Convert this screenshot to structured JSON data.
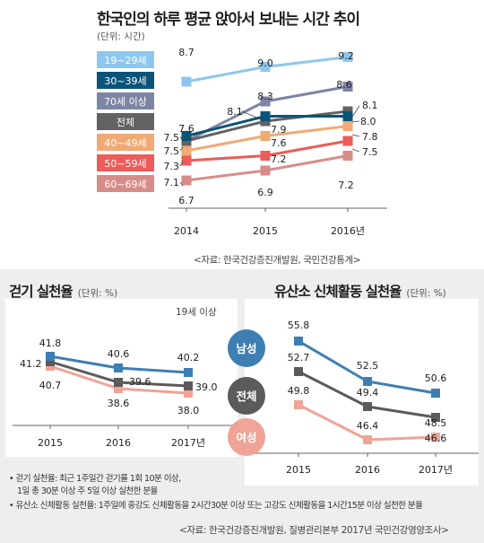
{
  "main": {
    "title": "한국인의 하루 평균 앉아서 보내는 시간 추이",
    "unit": "(단위: 시간)",
    "source": "<자료: 한국건강증진개발원, 국민건강통계>"
  },
  "walk": {
    "title": "걷기 실천율",
    "unit": "(단위: %)",
    "subtitle": "19세 이상"
  },
  "aerobic": {
    "title": "유산소 신체활동 실천율",
    "unit": "(단위: %)"
  },
  "notes": {
    "walk_def_1": "• 걷기 실천율: 최근 1주일간 걷기를 1회 10분 이상,",
    "walk_def_2": "1일 총 30분 이상 주 5일 이상 실천한 분율",
    "aerobic_def": "• 유산소 신체활동 실천율: 1주일에 중강도 신체활동을 2시간30분 이상 또는 고강도 신체활동을 1시간15분 이상 실천한 분율",
    "source": "<자료: 한국건강증진개발원, 질병관리본부 2017년 국민건강영양조사>"
  },
  "chart_data": [
    {
      "type": "line",
      "categories": [
        "2014",
        "2015",
        "2016년"
      ],
      "series": [
        {
          "name": "19~29세",
          "values": [
            8.7,
            9.0,
            9.2
          ],
          "labels": [
            "8.7",
            "9.0",
            "9.2"
          ],
          "color": "#8ec7ee"
        },
        {
          "name": "30~39세",
          "values": [
            7.6,
            8.0,
            8.0
          ],
          "labels": [
            "7.6",
            "",
            "8.0"
          ],
          "color": "#0b5478"
        },
        {
          "name": "70세 이상",
          "values": [
            7.5,
            8.3,
            8.6
          ],
          "labels": [
            "7.5",
            "8.3",
            "8.6"
          ],
          "color": "#7d85a4"
        },
        {
          "name": "전체",
          "values": [
            7.5,
            7.9,
            8.1
          ],
          "labels": [
            "7.5",
            "7.9",
            "8.1"
          ],
          "color": "#626262"
        },
        {
          "name": "40~49세",
          "values": [
            7.3,
            7.6,
            7.8
          ],
          "labels": [
            "7.3",
            "7.6",
            "7.8"
          ],
          "color": "#f0aa74"
        },
        {
          "name": "50~59세",
          "values": [
            7.1,
            7.2,
            7.5
          ],
          "labels": [
            "7.1",
            "7.2",
            "7.5"
          ],
          "color": "#ec5c59"
        },
        {
          "name": "60~69세",
          "values": [
            6.7,
            6.9,
            7.2
          ],
          "labels": [
            "6.7",
            "6.9",
            "7.2"
          ],
          "color": "#d88c8a"
        }
      ],
      "extra_labels": [
        "8.1"
      ],
      "ylim": [
        6.5,
        9.4
      ]
    },
    {
      "type": "line",
      "categories": [
        "2015",
        "2016",
        "2017년"
      ],
      "series": [
        {
          "name": "",
          "values": [
            41.8,
            40.6,
            40.2
          ],
          "color": "#3e7fb3"
        },
        {
          "name": "",
          "values": [
            41.2,
            39.6,
            39.0
          ],
          "color": "#5b5b5b"
        },
        {
          "name": "",
          "values": [
            40.7,
            38.6,
            38.0
          ],
          "color": "#f0a397"
        }
      ],
      "ylim": [
        37,
        42.5
      ]
    },
    {
      "type": "line",
      "categories": [
        "2015",
        "2016",
        "2017년"
      ],
      "series": [
        {
          "name": "남성",
          "values": [
            55.8,
            52.5,
            50.6
          ],
          "color": "#3e7fb3"
        },
        {
          "name": "전체",
          "values": [
            52.7,
            49.4,
            48.5
          ],
          "color": "#5b5b5b"
        },
        {
          "name": "여성",
          "values": [
            49.8,
            46.4,
            46.6
          ],
          "color": "#f0a397"
        }
      ],
      "ylim": [
        45,
        57
      ]
    }
  ]
}
